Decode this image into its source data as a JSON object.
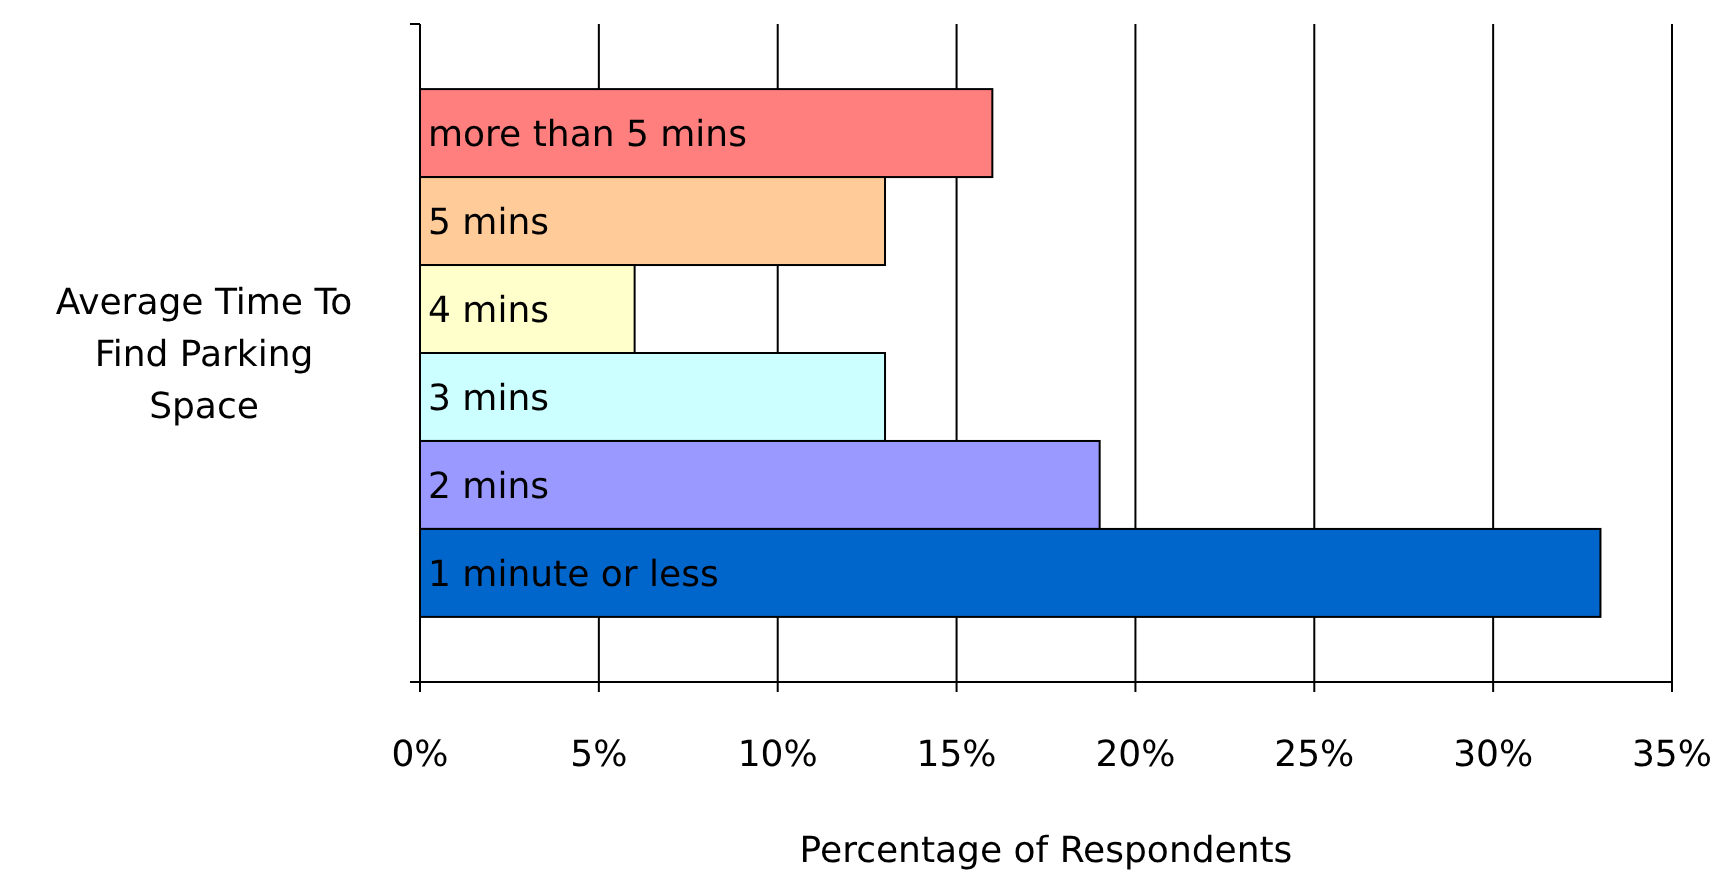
{
  "chart_data": {
    "type": "bar",
    "orientation": "horizontal",
    "xlabel": "Percentage of Respondents",
    "ylabel": "Average Time To Find Parking Space",
    "categories": [
      "more than 5 mins",
      "5 mins",
      "4 mins",
      "3 mins",
      "2 mins",
      "1 minute or less"
    ],
    "values": [
      16,
      13,
      6,
      13,
      19,
      33
    ],
    "colors": [
      "#ff7f7f",
      "#ffcc99",
      "#ffffcc",
      "#ccffff",
      "#9999ff",
      "#0066cc"
    ],
    "xlim": [
      0,
      35
    ],
    "xticks": [
      {
        "value": 0,
        "label": "0%"
      },
      {
        "value": 5,
        "label": "5%"
      },
      {
        "value": 10,
        "label": "10%"
      },
      {
        "value": 15,
        "label": "15%"
      },
      {
        "value": 20,
        "label": "20%"
      },
      {
        "value": 25,
        "label": "25%"
      },
      {
        "value": 30,
        "label": "30%"
      },
      {
        "value": 35,
        "label": "35%"
      }
    ],
    "grid": "x"
  }
}
